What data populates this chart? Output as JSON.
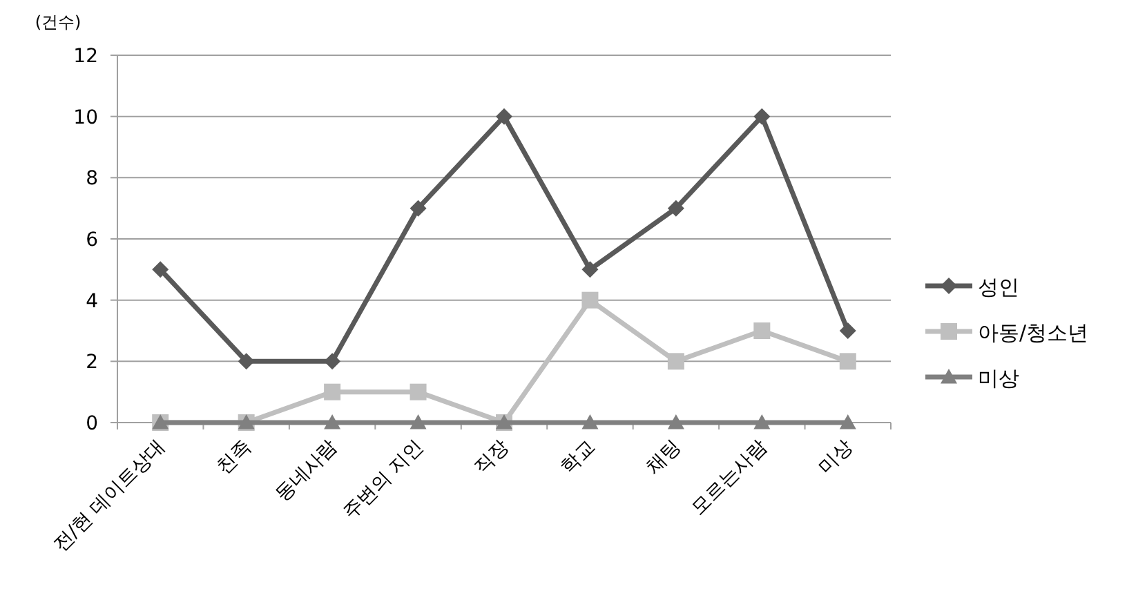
{
  "chart_data": {
    "type": "line",
    "ylabel": "(건수)",
    "categories": [
      "전/현 데이트상대",
      "친족",
      "동네사람",
      "주변의 지인",
      "직장",
      "학교",
      "채팅",
      "모르는사람",
      "미상"
    ],
    "series": [
      {
        "name": "성인",
        "color": "#595959",
        "marker": "diamond",
        "values": [
          5,
          2,
          2,
          7,
          10,
          5,
          7,
          10,
          3
        ]
      },
      {
        "name": "아동/청소년",
        "color": "#bfbfbf",
        "marker": "square",
        "values": [
          0,
          0,
          1,
          1,
          0,
          4,
          2,
          3,
          2
        ]
      },
      {
        "name": "미상",
        "color": "#808080",
        "marker": "triangle",
        "values": [
          0,
          0,
          0,
          0,
          0,
          0,
          0,
          0,
          0
        ]
      }
    ],
    "ylim": [
      0,
      12
    ],
    "yticks": [
      0,
      2,
      4,
      6,
      8,
      10,
      12
    ],
    "grid": "y",
    "legend": "right",
    "line_style": "solid"
  }
}
